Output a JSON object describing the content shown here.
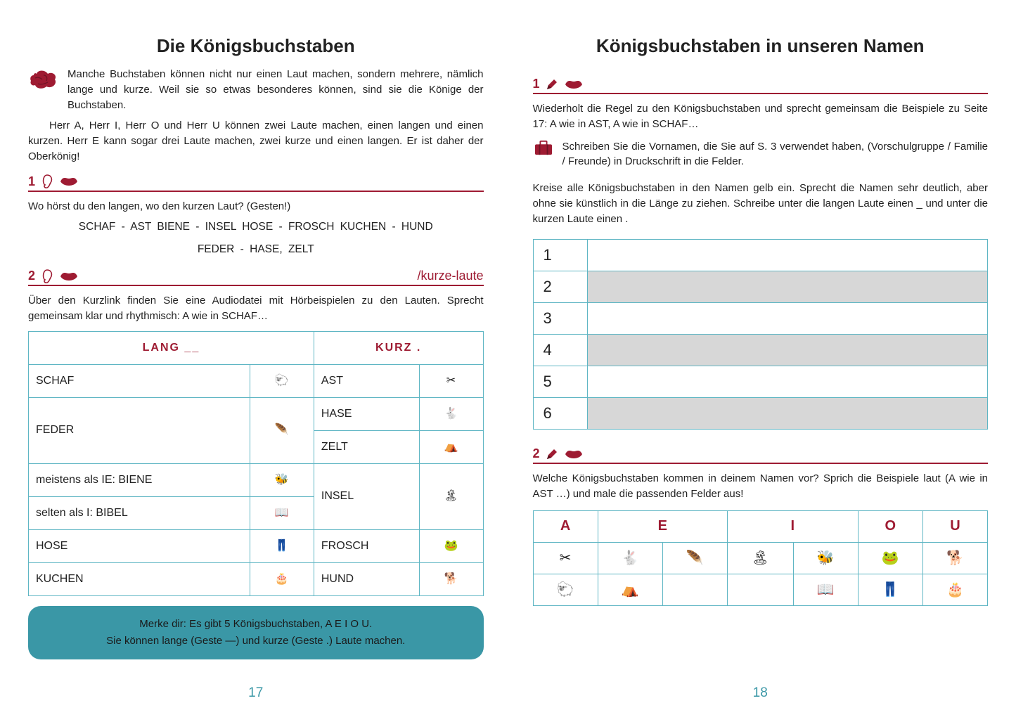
{
  "colors": {
    "accent": "#9e1b32",
    "tableBorder": "#5fb6c4",
    "noteBg": "#3a97a6",
    "pageNum": "#3a97a6",
    "shadeRow": "#d7d7d7"
  },
  "left": {
    "title": "Die Königsbuchstaben",
    "intro1": "Manche Buchstaben können nicht nur einen Laut machen, sondern mehrere, nämlich lange und kurze. Weil sie so etwas besonderes können, sind sie die Könige der Buchstaben.",
    "intro2": "Herr A, Herr I, Herr O und Herr U können zwei Laute machen, einen langen und einen kurzen. Herr E kann sogar drei Laute machen, zwei kurze und einen langen. Er ist daher der Oberkönig!",
    "sec1": {
      "num": "1"
    },
    "q1": "Wo hörst du den langen, wo den kurzen Laut? (Gesten!)",
    "wordsLine1": "SCHAF - AST     BIENE - INSEL     HOSE - FROSCH     KUCHEN - HUND",
    "wordsLine2": "FEDER - HASE, ZELT",
    "sec2": {
      "num": "2",
      "link": "/kurze-laute"
    },
    "q2": "Über den Kurzlink finden Sie eine Audiodatei mit Hörbeispielen zu den Lauten. Sprecht gemeinsam klar und rhythmisch: A wie in SCHAF…",
    "table": {
      "headLang": "LANG  __",
      "headKurz": "KURZ   .",
      "rows": [
        {
          "lang": "SCHAF",
          "langIcon": "🐑",
          "kurz": "AST",
          "kurzIcon": "✂"
        },
        {
          "lang": "FEDER",
          "langIcon": "🪶",
          "kurz": "HASE",
          "kurzIcon": "🐇",
          "langRowspan": 2
        },
        {
          "kurz": "ZELT",
          "kurzIcon": "⛺"
        },
        {
          "lang": "meistens als IE: BIENE",
          "langIcon": "🐝",
          "kurz": "INSEL",
          "kurzIcon": "🏝",
          "kurzRowspan": 2
        },
        {
          "lang": "selten als I: BIBEL",
          "langIcon": "📖"
        },
        {
          "lang": "HOSE",
          "langIcon": "👖",
          "kurz": "FROSCH",
          "kurzIcon": "🐸"
        },
        {
          "lang": "KUCHEN",
          "langIcon": "🎂",
          "kurz": "HUND",
          "kurzIcon": "🐕"
        }
      ]
    },
    "note1": "Merke dir: Es gibt 5 Königsbuchstaben, A E I O U.",
    "note2": "Sie können lange (Geste —) und kurze (Geste .) Laute machen.",
    "pageNum": "17"
  },
  "right": {
    "title": "Königsbuchstaben in unseren Namen",
    "sec1": {
      "num": "1"
    },
    "p1": "Wiederholt die Regel zu den Königsbuchstaben und sprecht gemeinsam die Beispiele zu Seite 17: A wie in AST, A wie in SCHAF…",
    "p2": "Schreiben Sie die Vornamen, die Sie auf S. 3 verwendet haben, (Vorschulgruppe / Familie / Freunde) in Druckschrift in die Felder.",
    "p3": "Kreise alle Königsbuchstaben in den Namen gelb ein. Sprecht die Namen sehr deutlich, aber ohne sie künstlich in die Länge zu ziehen. Schreibe unter die langen Laute einen _ und unter die kurzen Laute einen .",
    "names": [
      "1",
      "2",
      "3",
      "4",
      "5",
      "6"
    ],
    "sec2": {
      "num": "2"
    },
    "p4": "Welche Königsbuchstaben kommen in deinem Namen vor? Sprich die Beispiele laut (A wie in AST …) und male die passenden Felder aus!",
    "vowels": [
      "A",
      "E",
      "I",
      "O",
      "U"
    ],
    "vowelIcons": [
      [
        "✂",
        "🐇",
        "🪶",
        "🏝",
        "🐝",
        "🐸",
        "🐕"
      ],
      [
        "🐑",
        "⛺",
        "",
        "",
        "📖",
        "👖",
        "🎂"
      ]
    ],
    "pageNum": "18"
  }
}
